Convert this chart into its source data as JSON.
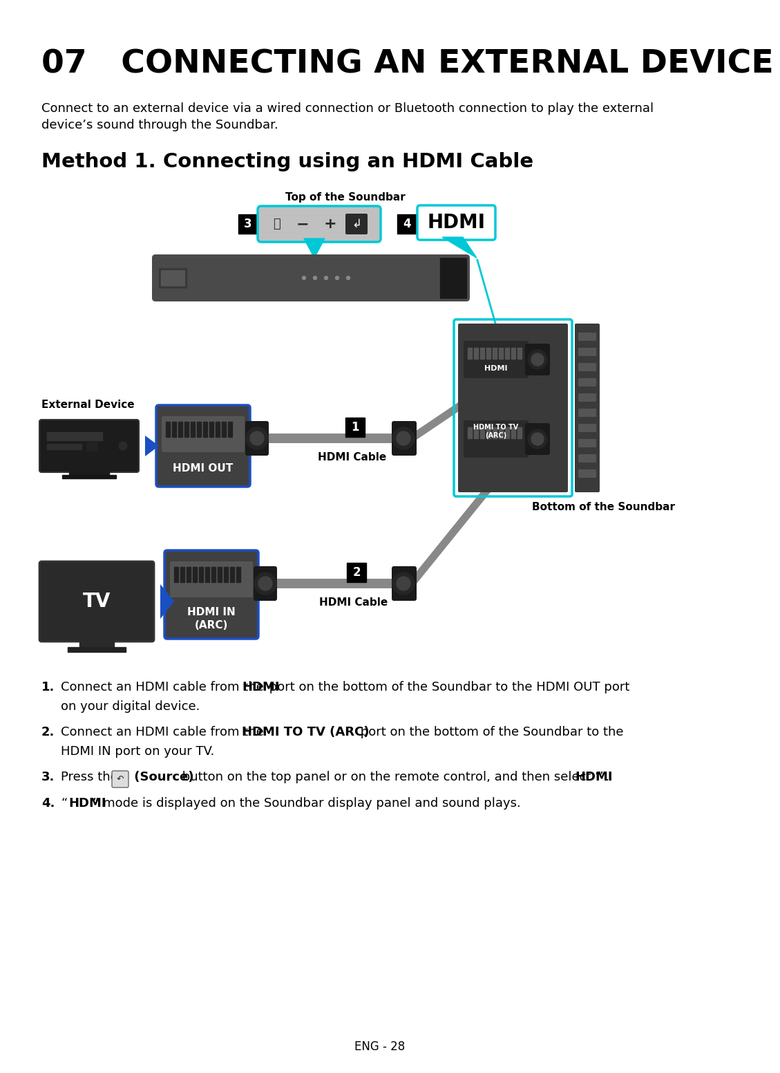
{
  "title": "07   CONNECTING AN EXTERNAL DEVICE",
  "subtitle_line1": "Connect to an external device via a wired connection or Bluetooth connection to play the external",
  "subtitle_line2": "device’s sound through the Soundbar.",
  "method_title": "Method 1. Connecting using an HDMI Cable",
  "label_top_soundbar": "Top of the Soundbar",
  "label_bottom_soundbar": "Bottom of the Soundbar",
  "label_external_device": "External Device",
  "label_hdmi_out": "HDMI OUT",
  "label_hdmi_in_arc": "HDMI IN\n(ARC)",
  "label_hdmi_cable_1": "HDMI Cable",
  "label_hdmi_cable_2": "HDMI Cable",
  "label_hdmi_port": "HDMI",
  "label_hdmi_to_tv": "HDMI TO TV\n(ARC)",
  "label_tv": "TV",
  "label_hdmi_box": "HDMI",
  "footer": "ENG - 28",
  "bg_color": "#ffffff",
  "text_color": "#000000",
  "cyan_color": "#00c8d7",
  "blue_border_color": "#1a4fc4",
  "soundbar_color": "#4a4a4a",
  "device_dark": "#2a2a2a",
  "device_mid": "#404040",
  "device_light": "#606060",
  "cable_color": "#888888",
  "port_color": "#1a1a1a"
}
